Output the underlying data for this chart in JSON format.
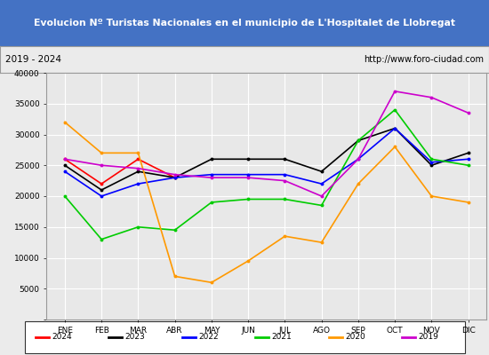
{
  "title": "Evolucion Nº Turistas Nacionales en el municipio de L'Hospitalet de Llobregat",
  "title_color": "#ffffff",
  "title_bg_color": "#4472c4",
  "subtitle_left": "2019 - 2024",
  "subtitle_right": "http://www.foro-ciudad.com",
  "months": [
    "ENE",
    "FEB",
    "MAR",
    "ABR",
    "MAY",
    "JUN",
    "JUL",
    "AGO",
    "SEP",
    "OCT",
    "NOV",
    "DIC"
  ],
  "ylim": [
    0,
    40000
  ],
  "yticks": [
    0,
    5000,
    10000,
    15000,
    20000,
    25000,
    30000,
    35000,
    40000
  ],
  "series": {
    "2024": {
      "color": "#ff0000",
      "data": [
        26000,
        22000,
        26000,
        23000,
        null,
        null,
        null,
        null,
        null,
        null,
        null,
        null
      ]
    },
    "2023": {
      "color": "#000000",
      "data": [
        25000,
        21000,
        24000,
        23000,
        26000,
        26000,
        26000,
        24000,
        29000,
        31000,
        25000,
        27000
      ]
    },
    "2022": {
      "color": "#0000ff",
      "data": [
        24000,
        20000,
        22000,
        23000,
        23500,
        23500,
        23500,
        22000,
        26000,
        31000,
        25500,
        26000
      ]
    },
    "2021": {
      "color": "#00cc00",
      "data": [
        20000,
        13000,
        15000,
        14500,
        19000,
        19500,
        19500,
        18500,
        29000,
        34000,
        26000,
        25000
      ]
    },
    "2020": {
      "color": "#ff9900",
      "data": [
        32000,
        27000,
        27000,
        7000,
        6000,
        9500,
        13500,
        12500,
        22000,
        28000,
        20000,
        19000
      ]
    },
    "2019": {
      "color": "#cc00cc",
      "data": [
        26000,
        25000,
        24500,
        23500,
        23000,
        23000,
        22500,
        20000,
        26000,
        37000,
        36000,
        33500
      ]
    }
  },
  "legend_order": [
    "2024",
    "2023",
    "2022",
    "2021",
    "2020",
    "2019"
  ],
  "bg_color": "#ebebeb",
  "plot_bg_color": "#e8e8e8",
  "grid_color": "#ffffff",
  "border_color": "#999999"
}
